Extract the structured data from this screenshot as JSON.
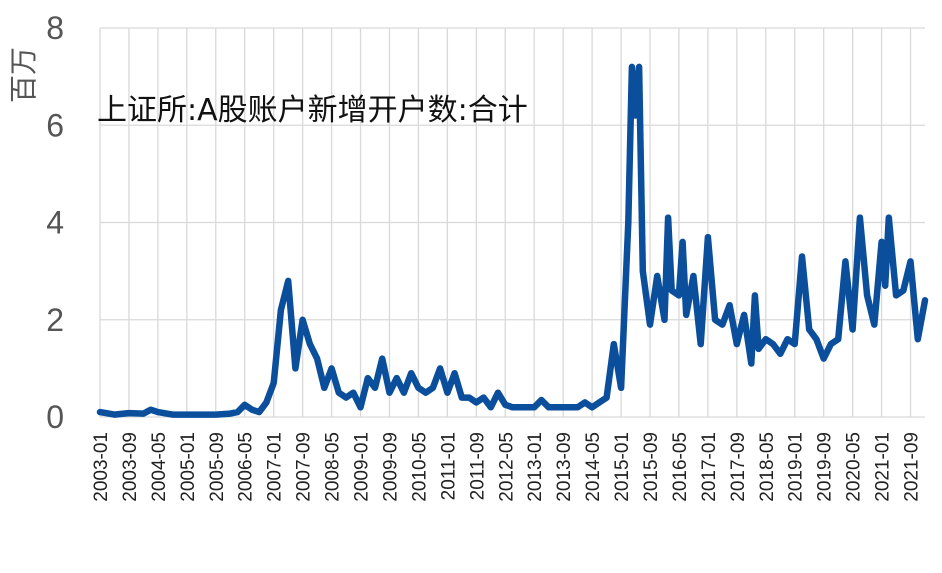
{
  "chart_data": {
    "type": "line",
    "title": "上证所:A股账户新增开户数:合计",
    "ylabel": "百万",
    "xlabel": "",
    "ylim": [
      0,
      8
    ],
    "yticks": [
      "0",
      "2",
      "4",
      "6",
      "8"
    ],
    "xticks": [
      "2003-01",
      "2003-09",
      "2004-05",
      "2005-01",
      "2005-09",
      "2006-05",
      "2007-01",
      "2007-09",
      "2008-05",
      "2009-01",
      "2009-09",
      "2010-05",
      "2011-01",
      "2011-09",
      "2012-05",
      "2013-01",
      "2013-09",
      "2014-05",
      "2015-01",
      "2015-09",
      "2016-05",
      "2017-01",
      "2017-09",
      "2018-05",
      "2019-01",
      "2019-09",
      "2020-05",
      "2021-01",
      "2021-09"
    ],
    "grid": true,
    "line_color": "#0b4f9c",
    "series": [
      {
        "name": "",
        "points": [
          [
            "2003-01",
            0.1
          ],
          [
            "2003-05",
            0.05
          ],
          [
            "2003-09",
            0.08
          ],
          [
            "2004-01",
            0.07
          ],
          [
            "2004-03",
            0.15
          ],
          [
            "2004-05",
            0.1
          ],
          [
            "2004-09",
            0.05
          ],
          [
            "2005-01",
            0.05
          ],
          [
            "2005-09",
            0.05
          ],
          [
            "2006-01",
            0.07
          ],
          [
            "2006-03",
            0.1
          ],
          [
            "2006-05",
            0.25
          ],
          [
            "2006-07",
            0.15
          ],
          [
            "2006-09",
            0.1
          ],
          [
            "2006-11",
            0.3
          ],
          [
            "2007-01",
            0.7
          ],
          [
            "2007-03",
            2.2
          ],
          [
            "2007-05",
            2.8
          ],
          [
            "2007-07",
            1.0
          ],
          [
            "2007-09",
            2.0
          ],
          [
            "2007-11",
            1.5
          ],
          [
            "2008-01",
            1.2
          ],
          [
            "2008-03",
            0.6
          ],
          [
            "2008-05",
            1.0
          ],
          [
            "2008-07",
            0.5
          ],
          [
            "2008-09",
            0.4
          ],
          [
            "2008-11",
            0.5
          ],
          [
            "2009-01",
            0.2
          ],
          [
            "2009-03",
            0.8
          ],
          [
            "2009-05",
            0.6
          ],
          [
            "2009-07",
            1.2
          ],
          [
            "2009-09",
            0.5
          ],
          [
            "2009-11",
            0.8
          ],
          [
            "2010-01",
            0.5
          ],
          [
            "2010-03",
            0.9
          ],
          [
            "2010-05",
            0.6
          ],
          [
            "2010-07",
            0.5
          ],
          [
            "2010-09",
            0.6
          ],
          [
            "2010-11",
            1.0
          ],
          [
            "2011-01",
            0.5
          ],
          [
            "2011-03",
            0.9
          ],
          [
            "2011-05",
            0.4
          ],
          [
            "2011-07",
            0.4
          ],
          [
            "2011-09",
            0.3
          ],
          [
            "2011-11",
            0.4
          ],
          [
            "2012-01",
            0.2
          ],
          [
            "2012-03",
            0.5
          ],
          [
            "2012-05",
            0.25
          ],
          [
            "2012-07",
            0.2
          ],
          [
            "2012-09",
            0.2
          ],
          [
            "2012-11",
            0.2
          ],
          [
            "2013-01",
            0.2
          ],
          [
            "2013-03",
            0.35
          ],
          [
            "2013-05",
            0.2
          ],
          [
            "2013-07",
            0.2
          ],
          [
            "2013-09",
            0.2
          ],
          [
            "2013-11",
            0.2
          ],
          [
            "2014-01",
            0.2
          ],
          [
            "2014-03",
            0.3
          ],
          [
            "2014-05",
            0.2
          ],
          [
            "2014-07",
            0.3
          ],
          [
            "2014-09",
            0.4
          ],
          [
            "2014-11",
            1.5
          ],
          [
            "2015-01",
            0.6
          ],
          [
            "2015-03",
            4.0
          ],
          [
            "2015-04",
            7.2
          ],
          [
            "2015-05",
            6.2
          ],
          [
            "2015-06",
            7.2
          ],
          [
            "2015-07",
            3.0
          ],
          [
            "2015-09",
            1.9
          ],
          [
            "2015-11",
            2.9
          ],
          [
            "2016-01",
            2.0
          ],
          [
            "2016-02",
            4.1
          ],
          [
            "2016-03",
            2.6
          ],
          [
            "2016-05",
            2.5
          ],
          [
            "2016-06",
            3.6
          ],
          [
            "2016-07",
            2.1
          ],
          [
            "2016-09",
            2.9
          ],
          [
            "2016-11",
            1.5
          ],
          [
            "2017-01",
            3.7
          ],
          [
            "2017-03",
            2.0
          ],
          [
            "2017-05",
            1.9
          ],
          [
            "2017-07",
            2.3
          ],
          [
            "2017-09",
            1.5
          ],
          [
            "2017-11",
            2.1
          ],
          [
            "2018-01",
            1.1
          ],
          [
            "2018-02",
            2.5
          ],
          [
            "2018-03",
            1.4
          ],
          [
            "2018-05",
            1.6
          ],
          [
            "2018-07",
            1.5
          ],
          [
            "2018-09",
            1.3
          ],
          [
            "2018-11",
            1.6
          ],
          [
            "2019-01",
            1.5
          ],
          [
            "2019-03",
            3.3
          ],
          [
            "2019-05",
            1.8
          ],
          [
            "2019-07",
            1.6
          ],
          [
            "2019-09",
            1.2
          ],
          [
            "2019-11",
            1.5
          ],
          [
            "2020-01",
            1.6
          ],
          [
            "2020-03",
            3.2
          ],
          [
            "2020-05",
            1.8
          ],
          [
            "2020-07",
            4.1
          ],
          [
            "2020-09",
            2.5
          ],
          [
            "2020-11",
            1.9
          ],
          [
            "2021-01",
            3.6
          ],
          [
            "2021-02",
            2.7
          ],
          [
            "2021-03",
            4.1
          ],
          [
            "2021-05",
            2.5
          ],
          [
            "2021-07",
            2.6
          ],
          [
            "2021-09",
            3.2
          ],
          [
            "2021-11",
            1.6
          ],
          [
            "2022-01",
            2.4
          ]
        ]
      }
    ]
  }
}
